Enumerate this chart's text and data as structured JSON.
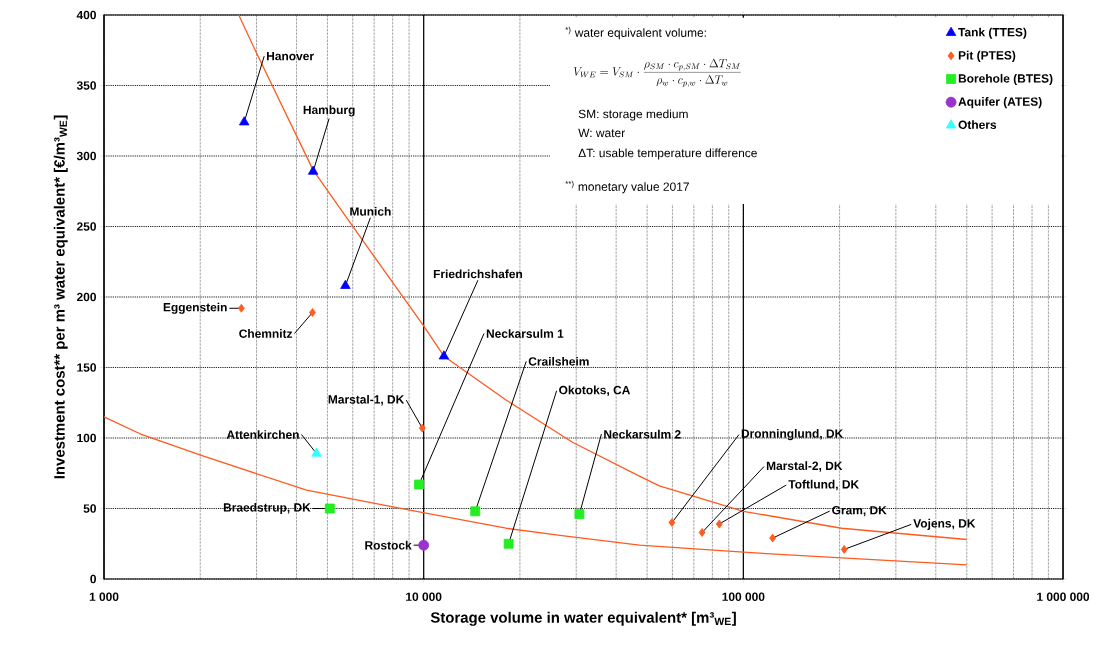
{
  "chart_data": {
    "type": "scatter",
    "xlabel": "Storage volume in water equivalent* [m³$_{WE}$]",
    "ylabel": "Investment cost** per m³ water equivalent* [€/m³$_{WE}$]",
    "log": "x",
    "xlim": [
      1000,
      1000000
    ],
    "xticks": [
      {
        "value": 1000,
        "label": "1 000"
      },
      {
        "value": 10000,
        "label": "10 000"
      },
      {
        "value": 100000,
        "label": "100 000"
      },
      {
        "value": 1000000,
        "label": "1 000 000"
      }
    ],
    "ylim": [
      0,
      400
    ],
    "yticks": [
      0,
      50,
      100,
      150,
      200,
      250,
      300,
      350,
      400
    ],
    "grid": true,
    "legend": "top right",
    "series": [
      {
        "name": "Tank (TTES)",
        "color": "#0000ff",
        "marker": "triangle",
        "x": [
          2745,
          4510,
          5690,
          11570
        ],
        "values": [
          324,
          289,
          208,
          158
        ]
      },
      {
        "name": "Pit (PTES)",
        "color": "#ff5a1f",
        "marker": "diamond",
        "x": [
          2690,
          4490,
          9900,
          59800,
          74300,
          84100,
          123500,
          206800
        ],
        "values": [
          192,
          189,
          107,
          40,
          33,
          39,
          29,
          21
        ]
      },
      {
        "name": "Borehole (BTES)",
        "color": "#22ee22",
        "marker": "square",
        "x": [
          9670,
          5085,
          14500,
          30700,
          18440
        ],
        "values": [
          67,
          50,
          48,
          46,
          25
        ]
      },
      {
        "name": "Aquifer (ATES)",
        "color": "#9933cc",
        "marker": "circle",
        "x": [
          10000
        ],
        "values": [
          24
        ]
      },
      {
        "name": "Others",
        "color": "#33ffff",
        "marker": "triangle",
        "x": [
          4620
        ],
        "values": [
          89
        ]
      },
      {
        "type": "line",
        "color": "#ff5a1f",
        "x": [
          2640,
          3000,
          4510,
          6000,
          9960,
          11570,
          18100,
          29200,
          47300,
          54600,
          100000,
          203000,
          500000
        ],
        "values": [
          400,
          373,
          290,
          250,
          180,
          158,
          127,
          97,
          73,
          66,
          48,
          36,
          28
        ]
      },
      {
        "type": "line",
        "color": "#ff5a1f",
        "x": [
          1000,
          1296,
          1995,
          4300,
          9960,
          18100,
          26700,
          47300,
          100000,
          203000,
          500000
        ],
        "values": [
          115,
          103,
          88,
          63,
          47,
          36,
          31,
          24,
          19,
          15,
          10
        ]
      }
    ],
    "annotations": [
      "$^{*)}$ water equivalent volume:",
      "V_{WE}=V_{SM}\\cdot\\frac{\\rho_{SM}\\cdot c_{p,SM}\\cdot\\Delta T_{SM}}{\\rho_{w}\\cdot c_{p,w}\\cdot\\Delta T_{w}}",
      "SM: storage medium",
      "W: water",
      "ΔT: usable temperature difference",
      "$^{**)}$ monetary value 2017",
      {
        "text": "Hanover",
        "x": 2745,
        "y": 324
      },
      {
        "text": "Hamburg",
        "x": 4510,
        "y": 289
      },
      {
        "text": "Munich",
        "x": 5690,
        "y": 208
      },
      {
        "text": "Friedrichshafen",
        "x": 11570,
        "y": 158
      },
      {
        "text": "Eggenstein",
        "x": 2690,
        "y": 192
      },
      {
        "text": "Chemnitz",
        "x": 4490,
        "y": 189
      },
      {
        "text": "Marstal-1, DK",
        "x": 9900,
        "y": 107
      },
      {
        "text": "Attenkirchen",
        "x": 4620,
        "y": 89
      },
      {
        "text": "Neckarsulm 1",
        "x": 9670,
        "y": 67
      },
      {
        "text": "Braedstrup, DK",
        "x": 5085,
        "y": 50
      },
      {
        "text": "Crailsheim",
        "x": 14500,
        "y": 48
      },
      {
        "text": "Neckarsulm 2",
        "x": 30700,
        "y": 46
      },
      {
        "text": "Okotoks, CA",
        "x": 18440,
        "y": 25
      },
      {
        "text": "Rostock",
        "x": 10000,
        "y": 24
      },
      {
        "text": "Dronninglund, DK",
        "x": 59800,
        "y": 40
      },
      {
        "text": "Marstal-2, DK",
        "x": 74300,
        "y": 33
      },
      {
        "text": "Toftlund, DK",
        "x": 84100,
        "y": 39
      },
      {
        "text": "Gram, DK",
        "x": 123500,
        "y": 29
      },
      {
        "text": "Vojens, DK",
        "x": 206800,
        "y": 21
      }
    ]
  }
}
